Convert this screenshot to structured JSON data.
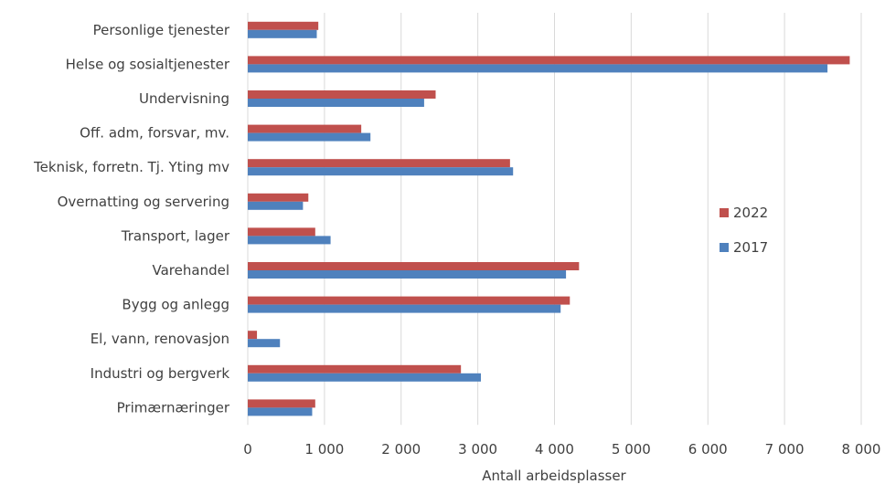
{
  "chart_data": {
    "type": "bar",
    "orientation": "horizontal",
    "categories": [
      "Personlige tjenester",
      "Helse og sosialtjenester",
      "Undervisning",
      "Off. adm, forsvar, mv.",
      "Teknisk, forretn. Tj. Yting mv",
      "Overnatting og servering",
      "Transport, lager",
      "Varehandel",
      "Bygg og anlegg",
      "El, vann, renovasjon",
      "Industri og bergverk",
      "Primærnæringer"
    ],
    "series": [
      {
        "name": "2022",
        "color": "#c0504d",
        "values": [
          920,
          7850,
          2450,
          1480,
          3420,
          790,
          880,
          4320,
          4200,
          120,
          2780,
          880
        ]
      },
      {
        "name": "2017",
        "color": "#4f81bd",
        "values": [
          900,
          7560,
          2300,
          1600,
          3460,
          720,
          1080,
          4150,
          4080,
          420,
          3040,
          840
        ]
      }
    ],
    "xlim": [
      0,
      8000
    ],
    "xticks": [
      0,
      1000,
      2000,
      3000,
      4000,
      5000,
      6000,
      7000,
      8000
    ],
    "xtick_labels": [
      "0",
      "1 000",
      "2 000",
      "3 000",
      "4 000",
      "5 000",
      "6 000",
      "7 000",
      "8 000"
    ],
    "xlabel": "Antall arbeidsplasser",
    "ylabel": "",
    "title": "",
    "grid": "vertical",
    "legend": "right"
  }
}
